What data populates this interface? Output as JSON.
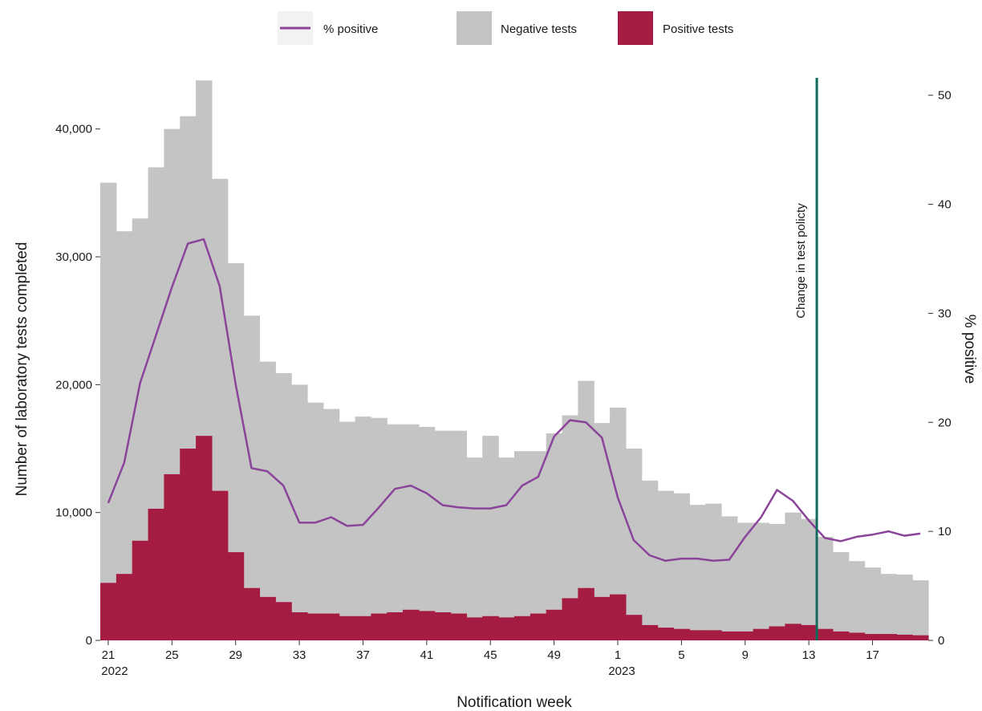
{
  "chart_data": {
    "type": "bar",
    "title": "",
    "xlabel": "Notification week",
    "ylabel": "Number of laboratory tests completed",
    "y2label": "% positive",
    "ylim": [
      0,
      44000
    ],
    "y2lim": [
      0,
      51.6
    ],
    "yticks": [
      "0",
      "10,000",
      "20,000",
      "30,000",
      "40,000"
    ],
    "y2ticks": [
      "0",
      "10",
      "20",
      "30",
      "40",
      "50"
    ],
    "stacked": true,
    "grid": false,
    "legend_position": "top",
    "weeks": [
      21,
      22,
      23,
      24,
      25,
      26,
      27,
      28,
      29,
      30,
      31,
      32,
      33,
      34,
      35,
      36,
      37,
      38,
      39,
      40,
      41,
      42,
      43,
      44,
      45,
      46,
      47,
      48,
      49,
      50,
      51,
      52,
      1,
      2,
      3,
      4,
      5,
      6,
      7,
      8,
      9,
      10,
      11,
      12,
      13,
      14,
      15,
      16,
      17,
      18,
      19,
      20
    ],
    "x_tick_labels": [
      {
        "index": 0,
        "label": "21",
        "year": "2022"
      },
      {
        "index": 4,
        "label": "25"
      },
      {
        "index": 8,
        "label": "29"
      },
      {
        "index": 12,
        "label": "33"
      },
      {
        "index": 16,
        "label": "37"
      },
      {
        "index": 20,
        "label": "41"
      },
      {
        "index": 24,
        "label": "45"
      },
      {
        "index": 28,
        "label": "49"
      },
      {
        "index": 32,
        "label": "1",
        "year": "2023"
      },
      {
        "index": 36,
        "label": "5"
      },
      {
        "index": 40,
        "label": "9"
      },
      {
        "index": 44,
        "label": "13"
      },
      {
        "index": 48,
        "label": "17"
      }
    ],
    "series": [
      {
        "name": "Positive tests",
        "kind": "bar",
        "color": "#a51c43",
        "values": [
          4500,
          5200,
          7800,
          10300,
          13000,
          15000,
          16000,
          11700,
          6900,
          4100,
          3400,
          3000,
          2200,
          2100,
          2100,
          1900,
          1900,
          2100,
          2200,
          2400,
          2300,
          2200,
          2100,
          1800,
          1900,
          1800,
          1900,
          2100,
          2400,
          3300,
          4100,
          3400,
          3600,
          2000,
          1200,
          1000,
          900,
          800,
          800,
          700,
          700,
          900,
          1100,
          1300,
          1200,
          900,
          700,
          600,
          500,
          500,
          450,
          400
        ]
      },
      {
        "name": "Negative tests",
        "kind": "bar",
        "color": "#c4c4c4",
        "values": [
          31300,
          26800,
          25200,
          26700,
          27000,
          26000,
          27800,
          24400,
          22600,
          21300,
          18400,
          17900,
          17800,
          16500,
          16000,
          15200,
          15600,
          15300,
          14700,
          14500,
          14400,
          14200,
          14300,
          12500,
          14100,
          12500,
          12900,
          12700,
          13800,
          14300,
          16200,
          13600,
          14600,
          13000,
          11300,
          10700,
          10600,
          9800,
          9900,
          9000,
          8500,
          8300,
          8000,
          8700,
          8300,
          7200,
          6200,
          5600,
          5200,
          4700,
          4700,
          4300
        ]
      },
      {
        "name": "% positive",
        "kind": "line",
        "axis": "right",
        "color": "#8a449a",
        "values": [
          12.6,
          16.3,
          23.6,
          28.0,
          32.4,
          36.4,
          36.8,
          32.5,
          23.5,
          15.8,
          15.5,
          14.2,
          10.8,
          10.8,
          11.3,
          10.5,
          10.6,
          12.2,
          13.9,
          14.2,
          13.5,
          12.4,
          12.2,
          12.1,
          12.1,
          12.4,
          14.2,
          15.0,
          18.7,
          20.2,
          20.0,
          18.6,
          13.1,
          9.2,
          7.8,
          7.3,
          7.5,
          7.5,
          7.3,
          7.4,
          9.5,
          11.3,
          13.8,
          12.8,
          11.0,
          9.4,
          9.1,
          9.5,
          9.7,
          10.0,
          9.6,
          9.8
        ]
      }
    ],
    "annotations": [
      {
        "type": "vline",
        "text": "Change in test policty",
        "color": "#0f6b5e",
        "week_position": 13.5
      }
    ]
  }
}
